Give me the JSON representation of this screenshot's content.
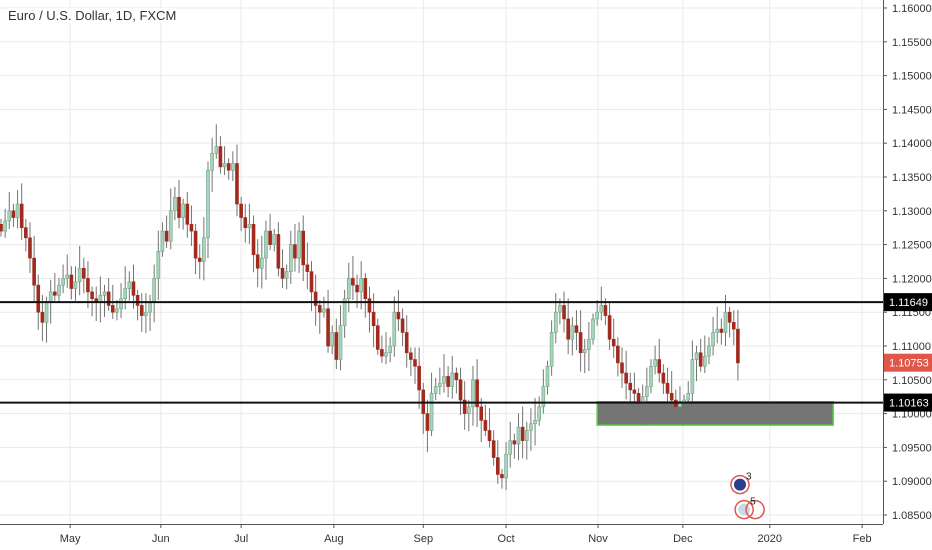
{
  "header": {
    "title": "Euro / U.S. Dollar, 1D, FXCM"
  },
  "colors": {
    "up": "#a9d3bd",
    "up_border": "#6ba583",
    "down": "#a02a1e",
    "wick": "#737373",
    "grid": "#e9e9e9",
    "last_price_bg": "#e0574a",
    "zone_fill": "#666666",
    "zone_border": "#4cd137"
  },
  "chart_data": {
    "type": "candlestick",
    "title": "Euro / U.S. Dollar, 1D, FXCM",
    "ylim": [
      1.08367,
      1.16118
    ],
    "y_ticks": [
      "1.16000",
      "1.15500",
      "1.15000",
      "1.14500",
      "1.14000",
      "1.13500",
      "1.13000",
      "1.12500",
      "1.12000",
      "1.11500",
      "1.11000",
      "1.10500",
      "1.10000",
      "1.09500",
      "1.09000",
      "1.08500"
    ],
    "x_ticks": [
      {
        "label": "May",
        "bar": 16.7
      },
      {
        "label": "Jun",
        "bar": 38.6
      },
      {
        "label": "Jul",
        "bar": 58
      },
      {
        "label": "Aug",
        "bar": 80.4
      },
      {
        "label": "Sep",
        "bar": 102
      },
      {
        "label": "Oct",
        "bar": 122
      },
      {
        "label": "Nov",
        "bar": 144.2
      },
      {
        "label": "Dec",
        "bar": 164.7
      },
      {
        "label": "2020",
        "bar": 185.7
      },
      {
        "label": "Feb",
        "bar": 208
      }
    ],
    "bars_visible": 213,
    "closes": [
      1.127,
      1.1285,
      1.13,
      1.129,
      1.131,
      1.1275,
      1.126,
      1.123,
      1.119,
      1.115,
      1.1135,
      1.1165,
      1.118,
      1.1175,
      1.119,
      1.12,
      1.1205,
      1.1185,
      1.1195,
      1.1215,
      1.12,
      1.118,
      1.117,
      1.1165,
      1.1175,
      1.118,
      1.116,
      1.115,
      1.1155,
      1.117,
      1.1185,
      1.1195,
      1.1175,
      1.116,
      1.1145,
      1.115,
      1.1165,
      1.12,
      1.124,
      1.127,
      1.1255,
      1.13,
      1.132,
      1.129,
      1.131,
      1.128,
      1.127,
      1.123,
      1.1225,
      1.126,
      1.136,
      1.1385,
      1.1395,
      1.1365,
      1.137,
      1.136,
      1.137,
      1.131,
      1.129,
      1.1275,
      1.128,
      1.1235,
      1.1215,
      1.123,
      1.127,
      1.125,
      1.1265,
      1.1215,
      1.12,
      1.121,
      1.125,
      1.123,
      1.127,
      1.122,
      1.121,
      1.118,
      1.116,
      1.115,
      1.1155,
      1.11,
      1.112,
      1.108,
      1.113,
      1.117,
      1.12,
      1.119,
      1.118,
      1.12,
      1.117,
      1.115,
      1.113,
      1.1095,
      1.1085,
      1.109,
      1.11,
      1.115,
      1.114,
      1.112,
      1.109,
      1.108,
      1.107,
      1.1035,
      1.1,
      1.0975,
      1.103,
      1.104,
      1.1045,
      1.1055,
      1.104,
      1.106,
      1.105,
      1.102,
      1.1,
      1.101,
      1.105,
      1.101,
      1.099,
      1.0975,
      1.096,
      1.0935,
      1.091,
      1.0905,
      1.094,
      1.096,
      1.0955,
      1.098,
      1.096,
      1.0975,
      1.0985,
      1.099,
      1.101,
      1.104,
      1.107,
      1.112,
      1.115,
      1.116,
      1.114,
      1.111,
      1.113,
      1.112,
      1.109,
      1.1095,
      1.111,
      1.114,
      1.115,
      1.116,
      1.1145,
      1.111,
      1.11,
      1.1075,
      1.106,
      1.1045,
      1.1035,
      1.103,
      1.1015,
      1.1025,
      1.104,
      1.107,
      1.108,
      1.106,
      1.1045,
      1.103,
      1.102,
      1.101,
      1.1015,
      1.102,
      1.103,
      1.108,
      1.109,
      1.107,
      1.1085,
      1.11,
      1.112,
      1.1125,
      1.112,
      1.115,
      1.1135,
      1.1125,
      1.1075
    ],
    "horizontal_lines": [
      {
        "price": 1.11649,
        "label": "1.11649"
      },
      {
        "price": 1.10163,
        "label": "1.10163"
      }
    ],
    "last_price": {
      "price": 1.10753,
      "label": "1.10753"
    },
    "zone": {
      "from_bar": 144,
      "to_bar": 201,
      "top": 1.10175,
      "bottom": 1.0983
    },
    "events": [
      {
        "type": "eu-flag",
        "count": "3",
        "bar": 178.5,
        "price": 1.0895
      },
      {
        "type": "us-flag",
        "count": "5",
        "bar": 179.5,
        "price": 1.0858
      }
    ]
  }
}
